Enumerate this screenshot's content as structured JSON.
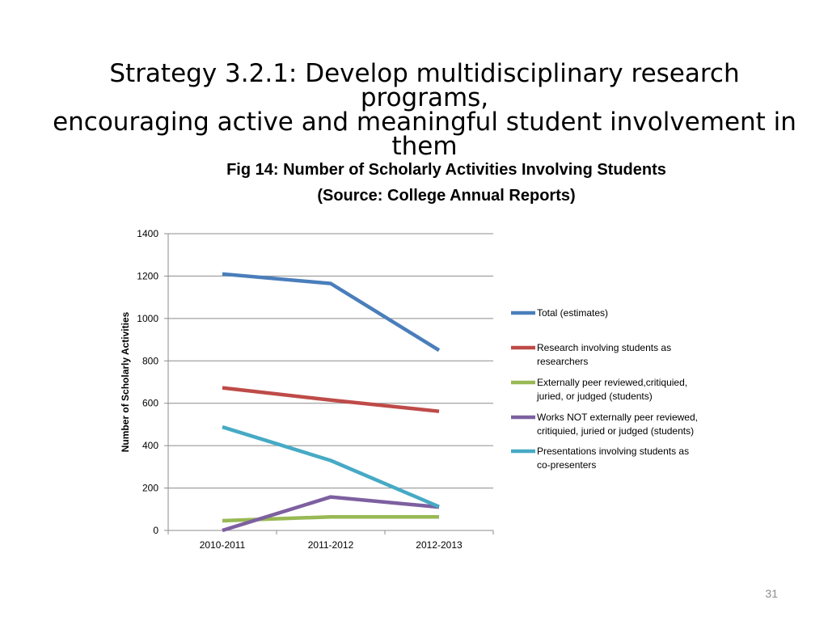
{
  "slide": {
    "title_line1": "Strategy 3.2.1: Develop multidisciplinary research programs,",
    "title_line2": "encouraging active and meaningful student involvement in them",
    "page_number": "31"
  },
  "chart_data": {
    "type": "line",
    "title": "Fig 14: Number of Scholarly Activities Involving Students",
    "subtitle": "(Source: College Annual Reports)",
    "xlabel": "",
    "ylabel": "Number of Scholarly Activities",
    "categories": [
      "2010-2011",
      "2011-2012",
      "2012-2013"
    ],
    "ylim": [
      0,
      1400
    ],
    "yticks": [
      0,
      200,
      400,
      600,
      800,
      1000,
      1200,
      1400
    ],
    "grid": true,
    "legend_position": "right",
    "series": [
      {
        "name": "Total (estimates)",
        "legend_lines": [
          "Total (estimates)"
        ],
        "color": "#4a7ebb",
        "values": [
          1210,
          1165,
          850
        ]
      },
      {
        "name": "Research involving students as researchers",
        "legend_lines": [
          "Research involving students as",
          "researchers"
        ],
        "color": "#be4b48",
        "values": [
          673,
          615,
          562
        ]
      },
      {
        "name": "Externally peer reviewed,critiquied, juried, or judged (students)",
        "legend_lines": [
          "Externally peer reviewed,critiquied,",
          "juried,  or judged (students)"
        ],
        "color": "#98b954",
        "values": [
          46,
          64,
          64
        ]
      },
      {
        "name": "Works NOT externally peer reviewed, critiquied, juried or judged (students)",
        "legend_lines": [
          "Works NOT externally peer reviewed,",
          "critiquied, juried or judged  (students)"
        ],
        "color": "#7d60a0",
        "values": [
          0,
          158,
          110
        ]
      },
      {
        "name": "Presentations involving students as co-presenters",
        "legend_lines": [
          "Presentations involving students as",
          "co-presenters"
        ],
        "color": "#46aac5",
        "values": [
          488,
          330,
          112
        ]
      }
    ]
  }
}
